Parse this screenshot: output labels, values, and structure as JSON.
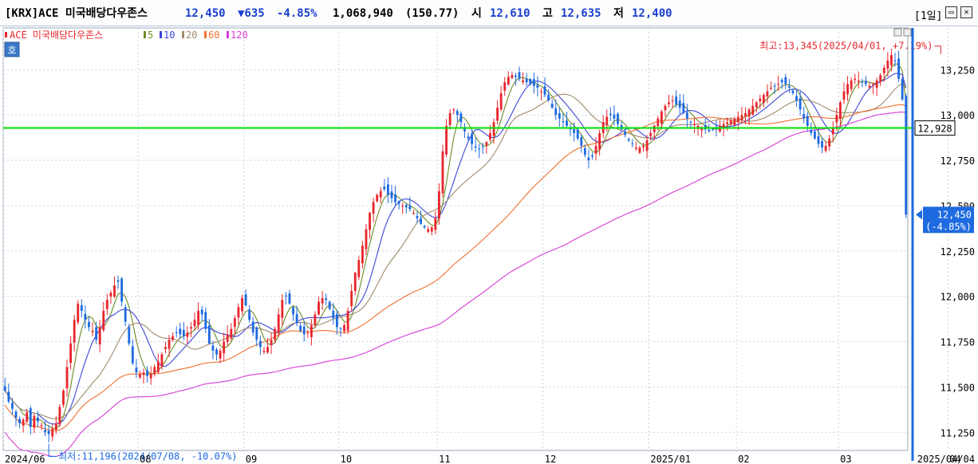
{
  "header": {
    "symbol": "[KRX]ACE 미국배당다우존스",
    "price": "12,450",
    "change": "▼635",
    "change_pct": "-4.85%",
    "volume": "1,068,940",
    "volume_amount": "(150.77)",
    "open_label": "시",
    "open": "12,610",
    "high_label": "고",
    "high": "12,635",
    "low_label": "저",
    "low": "12,400",
    "period": "[1일]",
    "restore_glyph": "▭",
    "close_glyph": "✕"
  },
  "legend": {
    "name": "ACE 미국배당다우존스",
    "ma": [
      {
        "label": "5",
        "color": "#6a8c24"
      },
      {
        "label": "10",
        "color": "#3a45d8"
      },
      {
        "label": "20",
        "color": "#a08a6a"
      },
      {
        "label": "60",
        "color": "#f07030"
      },
      {
        "label": "120",
        "color": "#d63cd6"
      }
    ]
  },
  "hoga_button": "호",
  "colors": {
    "up": "#e8262c",
    "down": "#1e6ae0",
    "grid": "#c8d0dc",
    "support_line": "#00e000",
    "axis_bar": "#1e6ae0"
  },
  "chart_data": {
    "type": "candlestick",
    "ylim": [
      11150,
      13480
    ],
    "y_ticks": [
      "13,250",
      "13,000",
      "12,750",
      "12,500",
      "12,250",
      "12,000",
      "11,750",
      "11,500",
      "11,250"
    ],
    "y_tick_values": [
      13250,
      13000,
      12750,
      12500,
      12250,
      12000,
      11750,
      11500,
      11250
    ],
    "x_ticks": [
      {
        "label": "2024/06",
        "index": 0
      },
      {
        "label": "08",
        "index": 37
      },
      {
        "label": "09",
        "index": 66
      },
      {
        "label": "10",
        "index": 92
      },
      {
        "label": "11",
        "index": 119
      },
      {
        "label": "12",
        "index": 148
      },
      {
        "label": "2025/01",
        "index": 177
      },
      {
        "label": "02",
        "index": 201
      },
      {
        "label": "03",
        "index": 229
      },
      {
        "label": "04",
        "index": 259
      }
    ],
    "current_date": "2025/04/04",
    "support_level": {
      "value": 12928,
      "label": "12,928"
    },
    "current_price": {
      "value": 12450,
      "label": "12,450",
      "pct": "(-4.85%)"
    },
    "max_annotation": {
      "text": "최고:13,345(2025/04/01, +7.19%)",
      "index": 257,
      "value": 13345
    },
    "min_annotation": {
      "text": "최저:11,196(2024/07/08, -10.07%)",
      "index": 12,
      "value": 11196
    },
    "close": [
      11480,
      11420,
      11380,
      11330,
      11300,
      11320,
      11360,
      11280,
      11340,
      11310,
      11290,
      11250,
      11240,
      11270,
      11300,
      11390,
      11480,
      11610,
      11740,
      11870,
      11960,
      11920,
      11870,
      11830,
      11810,
      11760,
      11830,
      11920,
      11980,
      12020,
      12060,
      12080,
      11970,
      11860,
      11740,
      11630,
      11580,
      11570,
      11580,
      11560,
      11570,
      11610,
      11640,
      11680,
      11720,
      11760,
      11780,
      11800,
      11790,
      11780,
      11800,
      11830,
      11870,
      11920,
      11900,
      11820,
      11740,
      11700,
      11680,
      11700,
      11750,
      11790,
      11820,
      11880,
      11940,
      11990,
      11950,
      11870,
      11800,
      11760,
      11720,
      11700,
      11720,
      11760,
      11820,
      11900,
      11980,
      12000,
      11960,
      11900,
      11850,
      11810,
      11790,
      11800,
      11840,
      11900,
      11970,
      11990,
      11980,
      11930,
      11880,
      11830,
      11820,
      11840,
      11920,
      12030,
      12130,
      12200,
      12280,
      12370,
      12460,
      12520,
      12560,
      12580,
      12590,
      12560,
      12540,
      12520,
      12510,
      12500,
      12490,
      12480,
      12460,
      12430,
      12400,
      12380,
      12370,
      12380,
      12430,
      12580,
      12800,
      12940,
      13010,
      13030,
      13000,
      12960,
      12910,
      12870,
      12840,
      12820,
      12810,
      12820,
      12850,
      12900,
      12960,
      13040,
      13120,
      13180,
      13210,
      13220,
      13210,
      13200,
      13190,
      13180,
      13170,
      13160,
      13150,
      13130,
      13110,
      13080,
      13040,
      13000,
      12980,
      12960,
      12940,
      12920,
      12900,
      12870,
      12830,
      12780,
      12750,
      12770,
      12830,
      12900,
      12960,
      12990,
      13000,
      12980,
      12950,
      12920,
      12890,
      12860,
      12840,
      12820,
      12820,
      12830,
      12860,
      12900,
      12940,
      12980,
      13020,
      13050,
      13070,
      13080,
      13060,
      13040,
      13010,
      12980,
      12960,
      12950,
      12940,
      12930,
      12920,
      12910,
      12920,
      12930,
      12940,
      12950,
      12960,
      12970,
      12980,
      12990,
      13000,
      13010,
      13030,
      13050,
      13070,
      13090,
      13110,
      13130,
      13150,
      13160,
      13170,
      13180,
      13170,
      13150,
      13120,
      13080,
      13030,
      12980,
      12940,
      12900,
      12870,
      12840,
      12820,
      12830,
      12870,
      12930,
      13000,
      13070,
      13130,
      13170,
      13190,
      13200,
      13190,
      13180,
      13170,
      13160,
      13170,
      13190,
      13220,
      13260,
      13300,
      13330,
      13300,
      13200,
      13085,
      12450
    ],
    "ma_series": [
      {
        "name": "5",
        "window": 5
      },
      {
        "name": "10",
        "window": 10
      },
      {
        "name": "20",
        "window": 20
      },
      {
        "name": "60",
        "window": 60
      },
      {
        "name": "120",
        "window": 120
      }
    ]
  }
}
